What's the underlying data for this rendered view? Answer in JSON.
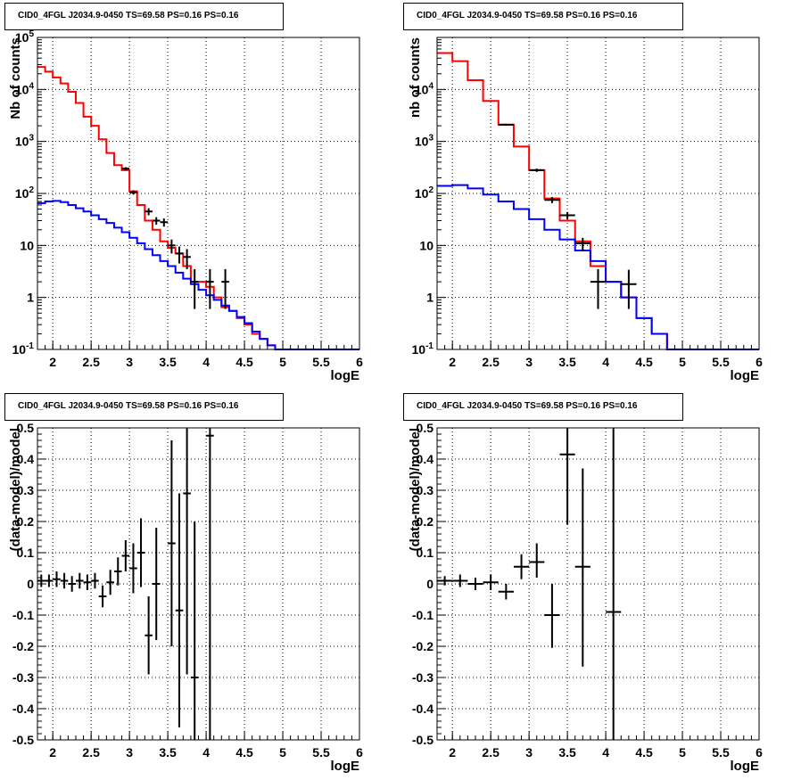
{
  "chart_data": [
    {
      "type": "line",
      "title": "CID0_4FGL J2034.9-0450 TS=69.58 PS=0.16 PS=0.16",
      "xlabel": "logE",
      "ylabel": "Nb of counts",
      "xlim": [
        1.8,
        6
      ],
      "ylim": [
        0.1,
        100000
      ],
      "log_y": true,
      "grid": true,
      "x_ticks": [
        "2",
        "2.5",
        "3",
        "3.5",
        "4",
        "4.5",
        "5",
        "5.5",
        "6"
      ],
      "y_ticks": [
        "10^-1",
        "1",
        "10",
        "10^2",
        "10^3",
        "10^4",
        "10^5"
      ],
      "series": [
        {
          "color": "#ff0000",
          "style": "step",
          "bin_edges": [
            1.8,
            1.9,
            2.0,
            2.1,
            2.2,
            2.3,
            2.4,
            2.5,
            2.6,
            2.7,
            2.8,
            2.9,
            3.0,
            3.1,
            3.2,
            3.3,
            3.4,
            3.5,
            3.6,
            3.7,
            3.8,
            3.9,
            4.0,
            4.1,
            4.2,
            4.3,
            4.4,
            4.5,
            4.6,
            4.7,
            4.8,
            4.9,
            5.0,
            6.0
          ],
          "values": [
            27000,
            22000,
            17000,
            13000,
            9000,
            5500,
            3000,
            2000,
            1100,
            600,
            350,
            280,
            110,
            60,
            30,
            20,
            12,
            9,
            7,
            4,
            2,
            2,
            1.6,
            1,
            0.65,
            0.55,
            0.4,
            0.3,
            0.2,
            0.16,
            0.12,
            0.1,
            0.1
          ]
        },
        {
          "color": "#0000ff",
          "style": "step",
          "bin_edges": [
            1.8,
            1.9,
            2.0,
            2.1,
            2.2,
            2.3,
            2.4,
            2.5,
            2.6,
            2.7,
            2.8,
            2.9,
            3.0,
            3.1,
            3.2,
            3.3,
            3.4,
            3.5,
            3.6,
            3.7,
            3.8,
            3.9,
            4.0,
            4.1,
            4.2,
            4.3,
            4.4,
            4.5,
            4.6,
            4.7,
            4.8,
            4.9,
            5.0,
            6.0
          ],
          "values": [
            65,
            70,
            72,
            68,
            60,
            52,
            45,
            38,
            32,
            27,
            22,
            18,
            14,
            11,
            8.5,
            6.5,
            5,
            4,
            3,
            2.3,
            1.8,
            1.4,
            1.1,
            0.9,
            0.7,
            0.55,
            0.42,
            0.32,
            0.22,
            0.16,
            0.12,
            0.1,
            0.1
          ]
        },
        {
          "color": "#000000",
          "style": "errorbar",
          "points": [
            {
              "x": 2.95,
              "y": 300,
              "ylo": 280,
              "yhi": 320,
              "xerr": 0.05
            },
            {
              "x": 3.05,
              "y": 105,
              "ylo": 95,
              "yhi": 115,
              "xerr": 0.05
            },
            {
              "x": 3.25,
              "y": 45,
              "ylo": 38,
              "yhi": 52,
              "xerr": 0.05
            },
            {
              "x": 3.35,
              "y": 30,
              "ylo": 25,
              "yhi": 35,
              "xerr": 0.05
            },
            {
              "x": 3.45,
              "y": 28,
              "ylo": 23,
              "yhi": 33,
              "xerr": 0.05
            },
            {
              "x": 3.55,
              "y": 10,
              "ylo": 7,
              "yhi": 13,
              "xerr": 0.05
            },
            {
              "x": 3.65,
              "y": 7,
              "ylo": 4.5,
              "yhi": 9.5,
              "xerr": 0.05
            },
            {
              "x": 3.75,
              "y": 6,
              "ylo": 3.5,
              "yhi": 8.5,
              "xerr": 0.05
            },
            {
              "x": 3.85,
              "y": 2,
              "ylo": 0.6,
              "yhi": 3.5,
              "xerr": 0.05
            },
            {
              "x": 4.05,
              "y": 2,
              "ylo": 0.6,
              "yhi": 3.5,
              "xerr": 0.05
            },
            {
              "x": 4.25,
              "y": 2,
              "ylo": 0.6,
              "yhi": 3.5,
              "xerr": 0.05
            }
          ]
        }
      ]
    },
    {
      "type": "line",
      "title": "CID0_4FGL J2034.9-0450 TS=69.58 PS=0.16 PS=0.16",
      "xlabel": "logE",
      "ylabel": "nb of counts",
      "xlim": [
        1.8,
        6
      ],
      "ylim": [
        0.1,
        100000
      ],
      "log_y": true,
      "grid": true,
      "x_ticks": [
        "2",
        "2.5",
        "3",
        "3.5",
        "4",
        "4.5",
        "5",
        "5.5",
        "6"
      ],
      "y_ticks": [
        "10^-1",
        "1",
        "10",
        "10^2",
        "10^3",
        "10^4"
      ],
      "series": [
        {
          "color": "#ff0000",
          "style": "step",
          "bin_edges": [
            1.8,
            2.0,
            2.2,
            2.4,
            2.6,
            2.8,
            3.0,
            3.2,
            3.4,
            3.6,
            3.8,
            4.0,
            4.2,
            4.4,
            4.6,
            4.8,
            5.0,
            6.0
          ],
          "values": [
            50000,
            35000,
            15000,
            6000,
            2100,
            800,
            280,
            80,
            30,
            12,
            4,
            2,
            1,
            0.4,
            0.2,
            0.1,
            0.1
          ]
        },
        {
          "color": "#0000ff",
          "style": "step",
          "bin_edges": [
            1.8,
            2.0,
            2.2,
            2.4,
            2.6,
            2.8,
            3.0,
            3.2,
            3.4,
            3.6,
            3.8,
            4.0,
            4.2,
            4.4,
            4.6,
            4.8,
            5.0,
            6.0
          ],
          "values": [
            140,
            145,
            125,
            95,
            70,
            50,
            32,
            20,
            13,
            8,
            5,
            2,
            1,
            0.4,
            0.2,
            0.1,
            0.1
          ]
        },
        {
          "color": "#000000",
          "style": "errorbar",
          "points": [
            {
              "x": 2.7,
              "y": 2100,
              "ylo": 2000,
              "yhi": 2200,
              "xerr": 0.1
            },
            {
              "x": 3.1,
              "y": 280,
              "ylo": 260,
              "yhi": 300,
              "xerr": 0.1
            },
            {
              "x": 3.3,
              "y": 75,
              "ylo": 65,
              "yhi": 85,
              "xerr": 0.1
            },
            {
              "x": 3.5,
              "y": 38,
              "ylo": 32,
              "yhi": 44,
              "xerr": 0.1
            },
            {
              "x": 3.7,
              "y": 11,
              "ylo": 8,
              "yhi": 14,
              "xerr": 0.1
            },
            {
              "x": 3.9,
              "y": 2,
              "ylo": 0.6,
              "yhi": 3.5,
              "xerr": 0.1
            },
            {
              "x": 4.3,
              "y": 1.8,
              "ylo": 0.6,
              "yhi": 3.4,
              "xerr": 0.1
            }
          ]
        }
      ]
    },
    {
      "type": "scatter",
      "title": "CID0_4FGL J2034.9-0450 TS=69.58 PS=0.16 PS=0.16",
      "xlabel": "logE",
      "ylabel": "(data-model)/model",
      "xlim": [
        1.8,
        6
      ],
      "ylim": [
        -0.5,
        0.5
      ],
      "log_y": false,
      "grid": true,
      "x_ticks": [
        "2",
        "2.5",
        "3",
        "3.5",
        "4",
        "4.5",
        "5",
        "5.5",
        "6"
      ],
      "y_ticks": [
        "-0.5",
        "-0.4",
        "-0.3",
        "-0.2",
        "-0.1",
        "0",
        "0.1",
        "0.2",
        "0.3",
        "0.4",
        "0.5"
      ],
      "series": [
        {
          "color": "#000000",
          "style": "errorbar",
          "points": [
            {
              "x": 1.85,
              "y": 0.01,
              "ylo": -0.01,
              "yhi": 0.03,
              "xerr": 0.05
            },
            {
              "x": 1.95,
              "y": 0.01,
              "ylo": -0.01,
              "yhi": 0.03,
              "xerr": 0.05
            },
            {
              "x": 2.05,
              "y": 0.015,
              "ylo": -0.01,
              "yhi": 0.04,
              "xerr": 0.05
            },
            {
              "x": 2.15,
              "y": 0.01,
              "ylo": -0.015,
              "yhi": 0.035,
              "xerr": 0.05
            },
            {
              "x": 2.25,
              "y": 0.0,
              "ylo": -0.025,
              "yhi": 0.025,
              "xerr": 0.05
            },
            {
              "x": 2.35,
              "y": 0.01,
              "ylo": -0.015,
              "yhi": 0.035,
              "xerr": 0.05
            },
            {
              "x": 2.45,
              "y": 0.005,
              "ylo": -0.02,
              "yhi": 0.03,
              "xerr": 0.05
            },
            {
              "x": 2.55,
              "y": 0.01,
              "ylo": -0.015,
              "yhi": 0.035,
              "xerr": 0.05
            },
            {
              "x": 2.65,
              "y": -0.04,
              "ylo": -0.075,
              "yhi": -0.005,
              "xerr": 0.05
            },
            {
              "x": 2.75,
              "y": 0.005,
              "ylo": -0.035,
              "yhi": 0.045,
              "xerr": 0.05
            },
            {
              "x": 2.85,
              "y": 0.04,
              "ylo": -0.005,
              "yhi": 0.085,
              "xerr": 0.05
            },
            {
              "x": 2.95,
              "y": 0.09,
              "ylo": 0.04,
              "yhi": 0.14,
              "xerr": 0.05
            },
            {
              "x": 3.05,
              "y": 0.05,
              "ylo": -0.03,
              "yhi": 0.13,
              "xerr": 0.05
            },
            {
              "x": 3.15,
              "y": 0.1,
              "ylo": -0.01,
              "yhi": 0.21,
              "xerr": 0.05
            },
            {
              "x": 3.25,
              "y": -0.165,
              "ylo": -0.29,
              "yhi": -0.04,
              "xerr": 0.05
            },
            {
              "x": 3.35,
              "y": 0.0,
              "ylo": -0.18,
              "yhi": 0.18,
              "xerr": 0.05
            },
            {
              "x": 3.55,
              "y": 0.13,
              "ylo": -0.2,
              "yhi": 0.46,
              "xerr": 0.05
            },
            {
              "x": 3.65,
              "y": -0.085,
              "ylo": -0.46,
              "yhi": 0.29,
              "xerr": 0.05
            },
            {
              "x": 3.75,
              "y": 0.29,
              "ylo": -0.29,
              "yhi": 0.5,
              "xerr": 0.05
            },
            {
              "x": 3.85,
              "y": -0.3,
              "ylo": -0.5,
              "yhi": 0.2,
              "xerr": 0.05
            },
            {
              "x": 4.05,
              "y": 0.475,
              "ylo": -0.5,
              "yhi": 0.5,
              "xerr": 0.05
            }
          ]
        }
      ]
    },
    {
      "type": "scatter",
      "title": "CID0_4FGL J2034.9-0450 TS=69.58 PS=0.16 PS=0.16",
      "xlabel": "logE",
      "ylabel": "(data-model)/model",
      "xlim": [
        1.8,
        6
      ],
      "ylim": [
        -0.5,
        0.5
      ],
      "log_y": false,
      "grid": true,
      "x_ticks": [
        "2",
        "2.5",
        "3",
        "3.5",
        "4",
        "4.5",
        "5",
        "5.5",
        "6"
      ],
      "y_ticks": [
        "-0.5",
        "-0.4",
        "-0.3",
        "-0.2",
        "-0.1",
        "0",
        "0.1",
        "0.2",
        "0.3",
        "0.4",
        "0.5"
      ],
      "series": [
        {
          "color": "#000000",
          "style": "errorbar",
          "points": [
            {
              "x": 1.9,
              "y": 0.01,
              "ylo": -0.005,
              "yhi": 0.025,
              "xerr": 0.1
            },
            {
              "x": 2.1,
              "y": 0.01,
              "ylo": -0.01,
              "yhi": 0.03,
              "xerr": 0.1
            },
            {
              "x": 2.3,
              "y": 0.0,
              "ylo": -0.02,
              "yhi": 0.02,
              "xerr": 0.1
            },
            {
              "x": 2.5,
              "y": 0.005,
              "ylo": -0.02,
              "yhi": 0.03,
              "xerr": 0.1
            },
            {
              "x": 2.7,
              "y": -0.025,
              "ylo": -0.05,
              "yhi": 0.0,
              "xerr": 0.1
            },
            {
              "x": 2.9,
              "y": 0.055,
              "ylo": 0.015,
              "yhi": 0.095,
              "xerr": 0.1
            },
            {
              "x": 3.1,
              "y": 0.07,
              "ylo": 0.02,
              "yhi": 0.13,
              "xerr": 0.1
            },
            {
              "x": 3.3,
              "y": -0.1,
              "ylo": -0.205,
              "yhi": 0.0,
              "xerr": 0.1
            },
            {
              "x": 3.5,
              "y": 0.415,
              "ylo": 0.19,
              "yhi": 0.5,
              "xerr": 0.1
            },
            {
              "x": 3.7,
              "y": 0.055,
              "ylo": -0.265,
              "yhi": 0.37,
              "xerr": 0.1
            },
            {
              "x": 4.1,
              "y": -0.09,
              "ylo": -0.5,
              "yhi": 0.5,
              "xerr": 0.1
            }
          ]
        }
      ]
    }
  ]
}
